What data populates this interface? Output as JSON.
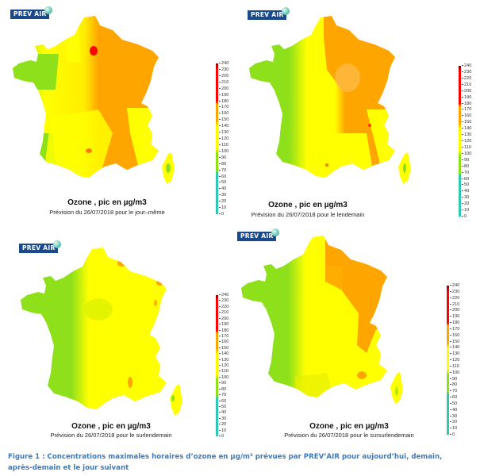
{
  "figure": {
    "caption_line1": "Figure 1 : Concentrations maximales horaires d’ozone en µg/m³ prévues par PREV’AIR pour aujourd’hui, demain,",
    "caption_line2": "après-demain et le jour suivant"
  },
  "logo_text": "PREV AIR",
  "colorbar": {
    "ticks": [
      "240",
      "230",
      "220",
      "210",
      "200",
      "190",
      "180",
      "170",
      "160",
      "150",
      "140",
      "130",
      "120",
      "110",
      "100",
      "90",
      "80",
      "70",
      "60",
      "50",
      "40",
      "30",
      "20",
      "10",
      "0"
    ],
    "colors": {
      "teal": "#2ec9b0",
      "green": "#8ee01a",
      "yellow": "#ffff00",
      "orange": "#ffa500",
      "red": "#ff0000",
      "darkred": "#8b0000"
    }
  },
  "panels": [
    {
      "id": "jour-meme",
      "title": "Ozone , pic en µg/m3",
      "subtitle": "Prévision du 26/07/2018 pour le jour–même",
      "dominant_classes": [
        "orange 140-170 (north/east)",
        "yellow 110-140 (center/west)",
        "green 70-100 (Brittany/Landes)",
        "red 180+ spot (Paris)"
      ]
    },
    {
      "id": "lendemain",
      "title": "Ozone , pic en µg/m3",
      "subtitle": "Prévision du 26/07/2018 pour le lendemain",
      "dominant_classes": [
        "orange 140-170 (east)",
        "yellow 110-140 (center)",
        "green 70-100 (west coast)"
      ]
    },
    {
      "id": "surlendemain",
      "title": "Ozone , pic en µg/m3",
      "subtitle": "Prévision du 26/07/2018 pour le surlendemain",
      "dominant_classes": [
        "yellow 110-140 (east)",
        "green 70-100 (west)",
        "orange spots (Alsace, Provence)"
      ]
    },
    {
      "id": "sursurlendemain",
      "title": "Ozone , pic en µg/m3",
      "subtitle": "Prévision du 26/07/2018 pour le sursurlendemain",
      "dominant_classes": [
        "orange 140-170 (northeast)",
        "yellow 110-140 (center)",
        "green 70-100 (west coast)"
      ]
    }
  ]
}
